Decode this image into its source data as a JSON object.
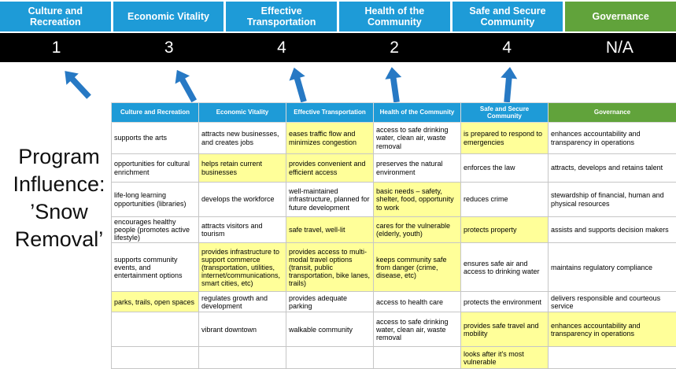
{
  "slide_title": "Program Influence: ’Snow Removal’",
  "colors": {
    "pillar_blue": "#1E9BD7",
    "governance_green": "#61A33B",
    "highlight_yellow": "#FFFF99",
    "arrow_blue": "#2779C4",
    "score_bar_bg": "#000000"
  },
  "scoreboard": {
    "pillars": [
      {
        "label": "Culture and Recreation",
        "score": "1",
        "theme": "blue"
      },
      {
        "label": "Economic Vitality",
        "score": "3",
        "theme": "blue"
      },
      {
        "label": "Effective Transportation",
        "score": "4",
        "theme": "blue"
      },
      {
        "label": "Health of the Community",
        "score": "2",
        "theme": "blue"
      },
      {
        "label": "Safe and Secure Community",
        "score": "4",
        "theme": "blue"
      },
      {
        "label": "Governance",
        "score": "N/A",
        "theme": "green"
      }
    ]
  },
  "matrix": {
    "headers": [
      {
        "label": "Culture and Recreation",
        "theme": "blue"
      },
      {
        "label": "Economic Vitality",
        "theme": "blue"
      },
      {
        "label": "Effective Transportation",
        "theme": "blue"
      },
      {
        "label": "Health of the Community",
        "theme": "blue"
      },
      {
        "label": "Safe and Secure Community",
        "theme": "blue"
      },
      {
        "label": "Governance",
        "theme": "green"
      }
    ],
    "rows": [
      [
        {
          "text": "supports the arts",
          "highlight": false
        },
        {
          "text": "attracts new businesses, and creates jobs",
          "highlight": false
        },
        {
          "text": "eases traffic flow and minimizes congestion",
          "highlight": true
        },
        {
          "text": "access to safe drinking water, clean air, waste removal",
          "highlight": false
        },
        {
          "text": "is prepared to respond to emergencies",
          "highlight": true
        },
        {
          "text": "enhances accountability and transparency in operations",
          "highlight": false
        }
      ],
      [
        {
          "text": "opportunities for cultural enrichment",
          "highlight": false
        },
        {
          "text": "helps retain current businesses",
          "highlight": true
        },
        {
          "text": "provides convenient and efficient access",
          "highlight": true
        },
        {
          "text": "preserves the natural environment",
          "highlight": false
        },
        {
          "text": "enforces the law",
          "highlight": false
        },
        {
          "text": "attracts, develops and retains talent",
          "highlight": false
        }
      ],
      [
        {
          "text": "life-long learning opportunities (libraries)",
          "highlight": false
        },
        {
          "text": "develops the workforce",
          "highlight": false
        },
        {
          "text": "well-maintained infrastructure, planned for future development",
          "highlight": false
        },
        {
          "text": "basic needs – safety, shelter, food, opportunity to work",
          "highlight": true
        },
        {
          "text": "reduces crime",
          "highlight": false
        },
        {
          "text": "stewardship of financial, human and physical resources",
          "highlight": false
        }
      ],
      [
        {
          "text": "encourages healthy people (promotes active lifestyle)",
          "highlight": false
        },
        {
          "text": "attracts visitors and tourism",
          "highlight": false
        },
        {
          "text": "safe travel, well-lit",
          "highlight": true
        },
        {
          "text": "cares for the vulnerable (elderly, youth)",
          "highlight": true
        },
        {
          "text": "protects property",
          "highlight": true
        },
        {
          "text": "assists and supports decision makers",
          "highlight": false
        }
      ],
      [
        {
          "text": "supports community events, and entertainment options",
          "highlight": false
        },
        {
          "text": "provides infrastructure to support commerce (transportation, utilities, internet/communications, smart cities, etc)",
          "highlight": true
        },
        {
          "text": "provides access to multi-modal travel options (transit, public transportation, bike lanes, trails)",
          "highlight": true
        },
        {
          "text": "keeps community safe from danger (crime, disease, etc)",
          "highlight": true
        },
        {
          "text": "ensures safe air and access to drinking water",
          "highlight": false
        },
        {
          "text": "maintains regulatory compliance",
          "highlight": false
        }
      ],
      [
        {
          "text": "parks, trails, open spaces",
          "highlight": true
        },
        {
          "text": "regulates growth and development",
          "highlight": false
        },
        {
          "text": "provides adequate parking",
          "highlight": false
        },
        {
          "text": "access to health care",
          "highlight": false
        },
        {
          "text": "protects the environment",
          "highlight": false
        },
        {
          "text": "delivers responsible and courteous service",
          "highlight": false
        }
      ],
      [
        {
          "text": "",
          "highlight": false
        },
        {
          "text": "vibrant downtown",
          "highlight": false
        },
        {
          "text": "walkable community",
          "highlight": false
        },
        {
          "text": "access to safe drinking water, clean air, waste removal",
          "highlight": false
        },
        {
          "text": "provides safe travel and mobility",
          "highlight": true
        },
        {
          "text": "enhances accountability and transparency in operations",
          "highlight": true
        }
      ],
      [
        {
          "text": "",
          "highlight": false
        },
        {
          "text": "",
          "highlight": false
        },
        {
          "text": "",
          "highlight": false
        },
        {
          "text": "",
          "highlight": false
        },
        {
          "text": "looks after it's most vulnerable",
          "highlight": true
        },
        {
          "text": "",
          "highlight": false
        }
      ]
    ]
  }
}
